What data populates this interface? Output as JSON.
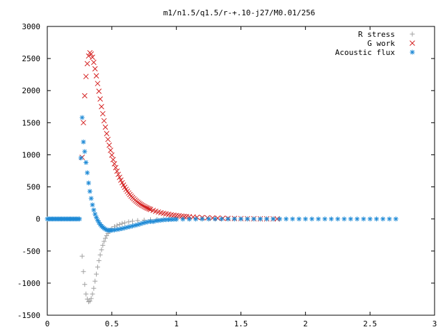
{
  "chart_data": {
    "type": "scatter",
    "title": "m1/n1.5/q1.5/r-+.10-j27/M0.01/256",
    "xlabel": "",
    "ylabel": "",
    "xlim": [
      0,
      3
    ],
    "ylim": [
      -1500,
      3000
    ],
    "x_ticks": [
      0,
      0.5,
      1,
      1.5,
      2,
      2.5,
      3
    ],
    "x_tick_labels": [
      "0",
      "0.5",
      "1",
      "1.5",
      "2",
      "2.5",
      "3"
    ],
    "y_ticks": [
      -1500,
      -1000,
      -500,
      0,
      500,
      1000,
      1500,
      2000,
      2500,
      3000
    ],
    "y_tick_labels": [
      "-1500",
      "-1000",
      "-500",
      "0",
      "500",
      "1000",
      "1500",
      "2000",
      "2500",
      "3000"
    ],
    "grid": false,
    "legend_position": "top-right",
    "series": [
      {
        "name": "R stress",
        "marker": "plus",
        "color": "#a0a0a0",
        "x": [
          0.27,
          0.28,
          0.29,
          0.3,
          0.31,
          0.32,
          0.33,
          0.34,
          0.35,
          0.36,
          0.37,
          0.38,
          0.39,
          0.4,
          0.41,
          0.42,
          0.43,
          0.44,
          0.45,
          0.46,
          0.47,
          0.48,
          0.49,
          0.5,
          0.52,
          0.54,
          0.56,
          0.58,
          0.6,
          0.63,
          0.66,
          0.7,
          0.75,
          0.8,
          0.85,
          0.9,
          0.95,
          1.0,
          1.05,
          1.1,
          1.15,
          1.2,
          1.25,
          1.3,
          1.35,
          1.4,
          1.45,
          1.5,
          1.55,
          1.6,
          1.65,
          1.7,
          1.75,
          1.8
        ],
        "y": [
          -580,
          -820,
          -1020,
          -1170,
          -1250,
          -1290,
          -1280,
          -1240,
          -1170,
          -1080,
          -970,
          -860,
          -750,
          -650,
          -560,
          -480,
          -410,
          -350,
          -300,
          -260,
          -225,
          -195,
          -170,
          -150,
          -120,
          -100,
          -85,
          -70,
          -60,
          -45,
          -35,
          -25,
          -18,
          -12,
          -8,
          -5,
          -3,
          -2,
          -1,
          -1,
          0,
          0,
          0,
          0,
          0,
          0,
          0,
          0,
          0,
          0,
          0,
          0,
          0,
          0
        ]
      },
      {
        "name": "G work",
        "marker": "cross",
        "color": "#d42020",
        "x": [
          0.27,
          0.28,
          0.29,
          0.3,
          0.31,
          0.32,
          0.33,
          0.34,
          0.35,
          0.36,
          0.37,
          0.38,
          0.39,
          0.4,
          0.41,
          0.42,
          0.43,
          0.44,
          0.45,
          0.46,
          0.47,
          0.48,
          0.49,
          0.5,
          0.51,
          0.52,
          0.53,
          0.54,
          0.55,
          0.56,
          0.57,
          0.58,
          0.59,
          0.6,
          0.61,
          0.62,
          0.63,
          0.64,
          0.65,
          0.66,
          0.67,
          0.68,
          0.69,
          0.7,
          0.71,
          0.72,
          0.73,
          0.74,
          0.75,
          0.76,
          0.77,
          0.78,
          0.79,
          0.8,
          0.82,
          0.84,
          0.86,
          0.88,
          0.9,
          0.92,
          0.94,
          0.96,
          0.98,
          1.0,
          1.02,
          1.04,
          1.06,
          1.08,
          1.1,
          1.13,
          1.16,
          1.2,
          1.24,
          1.28,
          1.32,
          1.36,
          1.4,
          1.45,
          1.5,
          1.55,
          1.6,
          1.65,
          1.7,
          1.75,
          1.78
        ],
        "y": [
          960,
          1500,
          1920,
          2220,
          2420,
          2540,
          2590,
          2570,
          2520,
          2440,
          2340,
          2230,
          2110,
          1990,
          1870,
          1750,
          1640,
          1530,
          1430,
          1330,
          1240,
          1150,
          1070,
          995,
          925,
          860,
          800,
          745,
          695,
          648,
          605,
          565,
          528,
          494,
          462,
          432,
          405,
          380,
          356,
          334,
          314,
          295,
          277,
          261,
          246,
          232,
          219,
          207,
          195,
          184,
          174,
          165,
          156,
          148,
          133,
          120,
          108,
          97,
          88,
          80,
          72,
          65,
          59,
          54,
          49,
          44,
          40,
          37,
          34,
          30,
          26,
          22,
          18,
          15,
          13,
          11,
          9,
          7,
          5,
          4,
          3,
          2,
          2,
          1,
          1
        ]
      },
      {
        "name": "Acoustic flux",
        "marker": "star",
        "color": "#1e8ad6",
        "x": [
          0.0,
          0.01,
          0.02,
          0.03,
          0.04,
          0.05,
          0.06,
          0.07,
          0.08,
          0.09,
          0.1,
          0.11,
          0.12,
          0.13,
          0.14,
          0.15,
          0.16,
          0.17,
          0.18,
          0.19,
          0.2,
          0.21,
          0.22,
          0.23,
          0.24,
          0.25,
          0.26,
          0.27,
          0.28,
          0.29,
          0.3,
          0.31,
          0.32,
          0.33,
          0.34,
          0.35,
          0.36,
          0.37,
          0.38,
          0.39,
          0.4,
          0.41,
          0.42,
          0.43,
          0.44,
          0.45,
          0.46,
          0.47,
          0.48,
          0.49,
          0.5,
          0.52,
          0.54,
          0.56,
          0.58,
          0.6,
          0.62,
          0.64,
          0.66,
          0.68,
          0.7,
          0.72,
          0.74,
          0.76,
          0.78,
          0.8,
          0.82,
          0.84,
          0.86,
          0.88,
          0.9,
          0.92,
          0.94,
          0.96,
          0.98,
          1.0,
          1.05,
          1.1,
          1.15,
          1.2,
          1.25,
          1.3,
          1.35,
          1.4,
          1.45,
          1.5,
          1.55,
          1.6,
          1.65,
          1.7,
          1.75,
          1.8,
          1.85,
          1.9,
          1.95,
          2.0,
          2.05,
          2.1,
          2.15,
          2.2,
          2.25,
          2.3,
          2.35,
          2.4,
          2.45,
          2.5,
          2.55,
          2.6,
          2.65,
          2.7
        ],
        "y": [
          0,
          0,
          0,
          0,
          0,
          0,
          0,
          0,
          0,
          0,
          0,
          0,
          0,
          0,
          0,
          0,
          0,
          0,
          0,
          0,
          0,
          0,
          0,
          0,
          0,
          0,
          950,
          1580,
          1200,
          1050,
          880,
          720,
          560,
          430,
          320,
          220,
          140,
          75,
          25,
          -20,
          -55,
          -85,
          -110,
          -130,
          -145,
          -160,
          -170,
          -175,
          -178,
          -178,
          -176,
          -172,
          -165,
          -158,
          -150,
          -140,
          -130,
          -120,
          -110,
          -100,
          -90,
          -78,
          -65,
          -55,
          -45,
          -40,
          -42,
          -30,
          -25,
          -20,
          -15,
          -12,
          -10,
          -8,
          -6,
          -5,
          -3,
          -2,
          -1,
          0,
          0,
          0,
          0,
          0,
          0,
          0,
          0,
          0,
          0,
          0,
          0,
          0,
          0,
          0,
          0,
          0,
          0,
          0,
          0,
          0,
          0,
          0,
          0,
          0,
          0,
          0,
          0,
          0,
          0,
          0
        ]
      }
    ]
  }
}
